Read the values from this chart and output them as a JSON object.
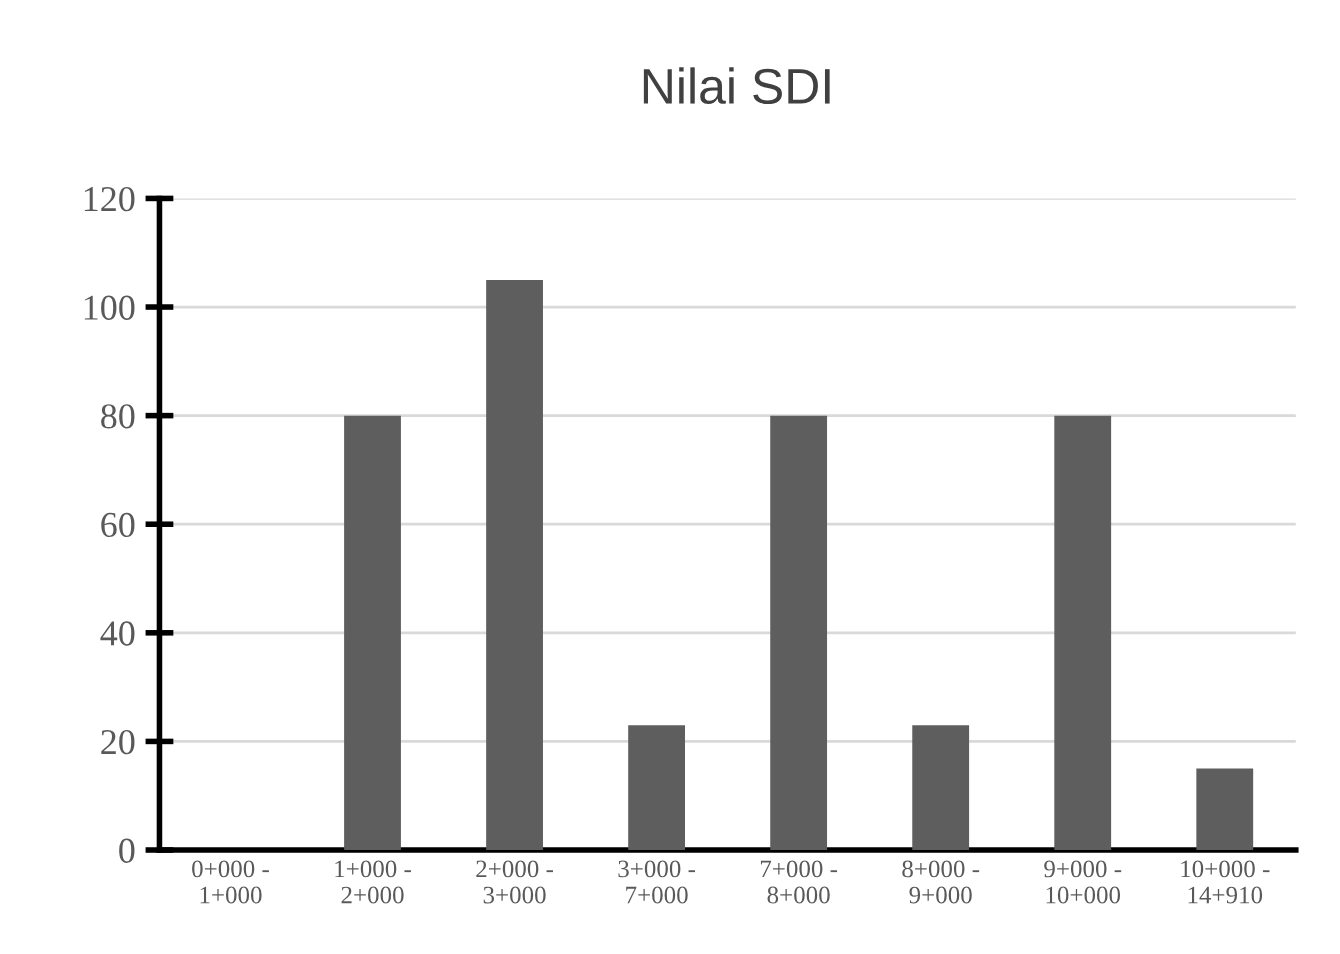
{
  "chart_data": {
    "type": "bar",
    "title": "Nilai SDI",
    "categories": [
      "0+000 -\n1+000",
      "1+000 -\n2+000",
      "2+000 -\n3+000",
      "3+000 -\n7+000",
      "7+000 -\n8+000",
      "8+000 -\n9+000",
      "9+000 -\n10+000",
      "10+000 -\n14+910"
    ],
    "values": [
      0,
      80,
      105,
      23,
      80,
      23,
      80,
      15
    ],
    "color": "#5e5e5e",
    "ylim": [
      0,
      120
    ],
    "yticks": [
      0,
      20,
      40,
      60,
      80,
      100,
      120
    ],
    "grid": "y",
    "legend": false
  }
}
